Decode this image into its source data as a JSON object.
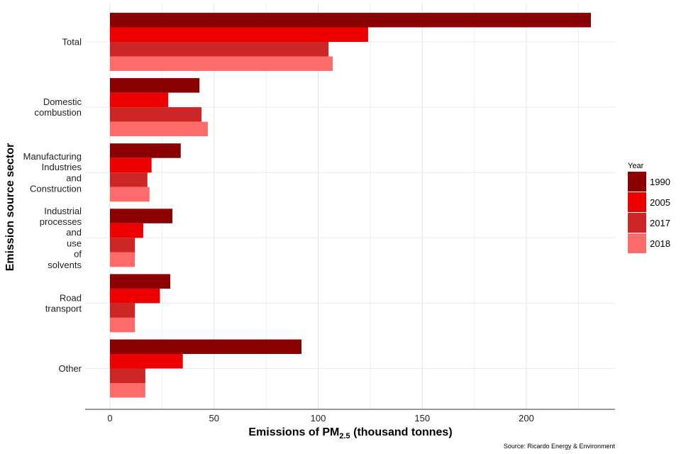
{
  "chart_data": {
    "type": "bar",
    "orientation": "horizontal",
    "categories": [
      [
        "Total"
      ],
      [
        "Domestic",
        "combustion"
      ],
      [
        "Manufacturing",
        "Industries",
        "and",
        "Construction"
      ],
      [
        "Industrial",
        "processes",
        "and",
        "use",
        "of",
        "solvents"
      ],
      [
        "Road",
        "transport"
      ],
      [
        "Other"
      ]
    ],
    "series": [
      {
        "name": "1990",
        "color": "#8b0000",
        "values": [
          231,
          43,
          34,
          30,
          29,
          92
        ]
      },
      {
        "name": "2005",
        "color": "#ee0000",
        "values": [
          124,
          28,
          20,
          16,
          24,
          35
        ]
      },
      {
        "name": "2017",
        "color": "#cd2626",
        "values": [
          105,
          44,
          18,
          12,
          12,
          17
        ]
      },
      {
        "name": "2018",
        "color": "#ff6a6a",
        "values": [
          107,
          47,
          19,
          12,
          12,
          17
        ]
      }
    ],
    "xlabel_main": "Emissions of PM",
    "xlabel_sub": "2.5",
    "xlabel_tail": " (thousand tonnes)",
    "ylabel": "Emission source sector",
    "xlim": [
      0,
      235
    ],
    "xticks": [
      0,
      50,
      100,
      150,
      200
    ],
    "grid": true,
    "legend_title": "Year",
    "legend_position": "right"
  },
  "source": "Source: Ricardo Energy & Environment"
}
